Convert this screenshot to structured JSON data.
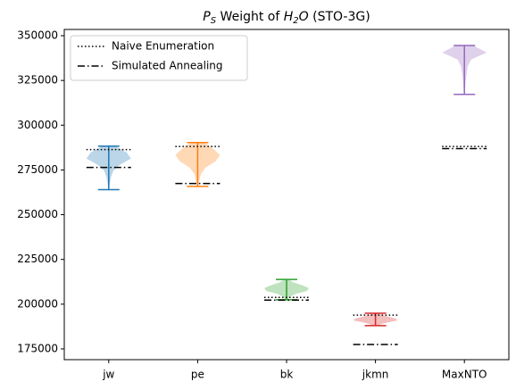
{
  "chart_data": {
    "type": "violin",
    "title": [
      "P",
      "S",
      " Weight of ",
      "H",
      "2",
      "O",
      " (STO-3G)"
    ],
    "categories": [
      "jw",
      "pe",
      "bk",
      "jkmn",
      "MaxNTO"
    ],
    "violins": [
      {
        "color": "#1f77b4",
        "min": 264000,
        "max": 288300,
        "density": [
          0.02,
          0.05,
          0.1,
          0.2,
          0.5,
          1,
          0.8,
          0.3
        ]
      },
      {
        "color": "#ff7f0e",
        "min": 265800,
        "max": 290300,
        "density": [
          0.03,
          0.08,
          0.15,
          0.35,
          0.8,
          1,
          0.7,
          0.3
        ]
      },
      {
        "color": "#2ca02c",
        "min": 202500,
        "max": 213800,
        "density": [
          0.05,
          0.15,
          0.4,
          0.9,
          1,
          0.7,
          0.3,
          0.1
        ]
      },
      {
        "color": "#d62728",
        "min": 188000,
        "max": 194900,
        "density": [
          0.1,
          0.3,
          0.6,
          1,
          0.9,
          0.6,
          0.3,
          0.1
        ]
      },
      {
        "color": "#9467bd",
        "min": 317200,
        "max": 344500,
        "density": [
          0.02,
          0.04,
          0.06,
          0.1,
          0.15,
          0.3,
          1,
          0.4
        ]
      }
    ],
    "series": [
      {
        "name": "Naive Enumeration",
        "style": "dotted",
        "color": "#000000",
        "values": [
          286400,
          288100,
          203800,
          193900,
          288100
        ]
      },
      {
        "name": "Simulated Annealing",
        "style": "dashdot",
        "color": "#000000",
        "values": [
          276400,
          267400,
          202300,
          177500,
          286900
        ]
      }
    ],
    "ylim": [
      169000,
      353500
    ],
    "yticks": [
      175000,
      200000,
      225000,
      250000,
      275000,
      300000,
      325000,
      350000
    ],
    "legend": "upper left"
  }
}
